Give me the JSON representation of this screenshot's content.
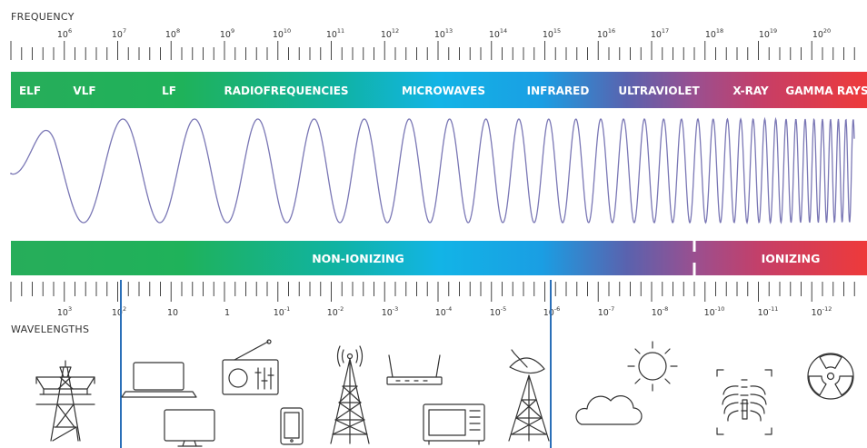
{
  "header": {
    "frequency_label": "FREQUENCY",
    "wavelengths_label": "WAVELENGTHS"
  },
  "frequency_ticks": [
    {
      "base": "10",
      "exp": "6"
    },
    {
      "base": "10",
      "exp": "7"
    },
    {
      "base": "10",
      "exp": "8"
    },
    {
      "base": "10",
      "exp": "9"
    },
    {
      "base": "10",
      "exp": "10"
    },
    {
      "base": "10",
      "exp": "11"
    },
    {
      "base": "10",
      "exp": "12"
    },
    {
      "base": "10",
      "exp": "13"
    },
    {
      "base": "10",
      "exp": "14"
    },
    {
      "base": "10",
      "exp": "15"
    },
    {
      "base": "10",
      "exp": "16"
    },
    {
      "base": "10",
      "exp": "17"
    },
    {
      "base": "10",
      "exp": "18"
    },
    {
      "base": "10",
      "exp": "19"
    },
    {
      "base": "10",
      "exp": "20"
    }
  ],
  "bands": [
    "ELF",
    "VLF",
    "LF",
    "RADIOFREQUENCIES",
    "MICROWAVES",
    "INFRARED",
    "ULTRAVIOLET",
    "X-RAY",
    "GAMMA RAYS"
  ],
  "ionization": {
    "non_ionizing": "NON-IONIZING",
    "ionizing": "IONIZING"
  },
  "wavelength_ticks": [
    {
      "base": "10",
      "exp": "3"
    },
    {
      "base": "10",
      "exp": "2"
    },
    {
      "base": "10",
      "exp": ""
    },
    {
      "base": "1",
      "exp": ""
    },
    {
      "base": "10",
      "exp": "-1"
    },
    {
      "base": "10",
      "exp": "-2"
    },
    {
      "base": "10",
      "exp": "-3"
    },
    {
      "base": "10",
      "exp": "-4"
    },
    {
      "base": "10",
      "exp": "-5"
    },
    {
      "base": "10",
      "exp": "-6"
    },
    {
      "base": "10",
      "exp": "-7"
    },
    {
      "base": "10",
      "exp": "-8"
    },
    {
      "base": "10",
      "exp": "-10"
    },
    {
      "base": "10",
      "exp": "-11"
    },
    {
      "base": "10",
      "exp": "-12"
    }
  ],
  "gradient_colors": [
    "#27ad5a",
    "#1fb25a",
    "#10b3a2",
    "#12b4e6",
    "#1a9ee3",
    "#5a62ae",
    "#9b4f8f",
    "#c73e66",
    "#ee3a3a"
  ],
  "icons": [
    "power-pylon-icon",
    "laptop-icon",
    "desktop-monitor-icon",
    "radio-icon",
    "smartphone-icon",
    "cell-tower-icon",
    "wifi-router-icon",
    "microwave-oven-icon",
    "satellite-dish-tower-icon",
    "cloud-icon",
    "sun-icon",
    "xray-chest-icon",
    "radiation-symbol-icon"
  ]
}
